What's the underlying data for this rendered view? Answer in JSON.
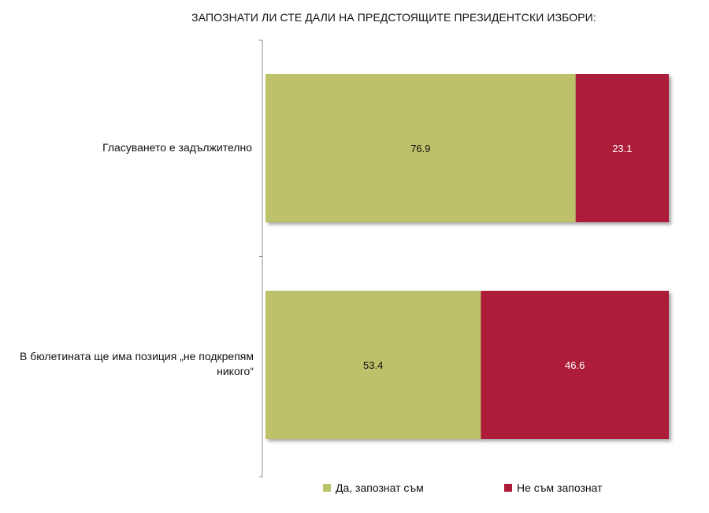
{
  "chart_data": {
    "type": "bar",
    "orientation": "horizontal",
    "stacked": true,
    "percent": true,
    "title": "ЗАПОЗНАТИ ЛИ СТЕ ДАЛИ НА ПРЕДСТОЯЩИТЕ ПРЕЗИДЕНТСКИ ИЗБОРИ:",
    "categories": [
      "Гласуването е задължително",
      "В бюлетината ще има позиция „не подкрепям никого“"
    ],
    "series": [
      {
        "name": "Да, запознат съм",
        "values": [
          76.9,
          53.4
        ],
        "color": "#bcc16b"
      },
      {
        "name": "Не съм запознат",
        "values": [
          23.1,
          46.6
        ],
        "color": "#ad1b38"
      }
    ],
    "xlim": [
      0,
      100
    ],
    "legend": "bottom",
    "grid": false
  }
}
